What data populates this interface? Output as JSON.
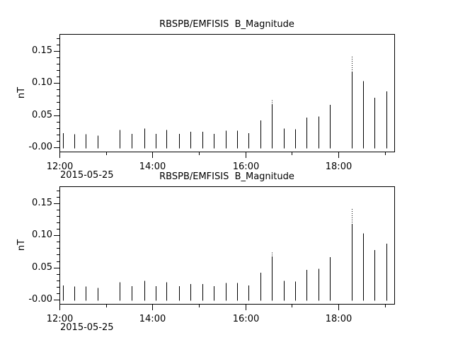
{
  "figure": {
    "background": "#ffffff",
    "foreground": "#000000",
    "date_label": "2015-05-25"
  },
  "chart_data": [
    {
      "type": "bar",
      "mark": "thin vertical min-max range bars",
      "title": "RBSPB/EMFISIS  B_Magnitude",
      "ylabel": "nT",
      "x_axis_date": "2015-05-25",
      "grid": false,
      "legend": "none",
      "xlim_hours": [
        12.0,
        19.2
      ],
      "ylim": [
        -0.0068,
        0.1765
      ],
      "x_major_ticks": [
        {
          "hour": 12,
          "label": "12:00"
        },
        {
          "hour": 14,
          "label": "14:00"
        },
        {
          "hour": 16,
          "label": "16:00"
        },
        {
          "hour": 18,
          "label": "18:00"
        }
      ],
      "x_minor_ticks_hours": [
        13,
        15,
        17,
        19
      ],
      "y_major_ticks": [
        {
          "value": 0.0,
          "label": "-0.00"
        },
        {
          "value": 0.05,
          "label": "0.05"
        },
        {
          "value": 0.1,
          "label": "0.10"
        },
        {
          "value": 0.15,
          "label": "0.15"
        }
      ],
      "y_minor_step": 0.01,
      "points": [
        {
          "time": "12:04",
          "hour": 12.07,
          "min": -0.002,
          "max": 0.022
        },
        {
          "time": "12:19",
          "hour": 12.32,
          "min": -0.002,
          "max": 0.02
        },
        {
          "time": "12:34",
          "hour": 12.57,
          "min": -0.002,
          "max": 0.02
        },
        {
          "time": "12:49",
          "hour": 12.82,
          "min": -0.002,
          "max": 0.018
        },
        {
          "time": "13:18",
          "hour": 13.3,
          "min": -0.002,
          "max": 0.027
        },
        {
          "time": "13:33",
          "hour": 13.55,
          "min": -0.002,
          "max": 0.021
        },
        {
          "time": "13:49",
          "hour": 13.82,
          "min": -0.002,
          "max": 0.029
        },
        {
          "time": "14:04",
          "hour": 14.07,
          "min": -0.002,
          "max": 0.021
        },
        {
          "time": "14:18",
          "hour": 14.3,
          "min": -0.002,
          "max": 0.027
        },
        {
          "time": "14:34",
          "hour": 14.57,
          "min": -0.002,
          "max": 0.021
        },
        {
          "time": "14:49",
          "hour": 14.82,
          "min": -0.002,
          "max": 0.024
        },
        {
          "time": "15:04",
          "hour": 15.07,
          "min": -0.002,
          "max": 0.024
        },
        {
          "time": "15:19",
          "hour": 15.32,
          "min": -0.002,
          "max": 0.021
        },
        {
          "time": "15:34",
          "hour": 15.57,
          "min": -0.002,
          "max": 0.026
        },
        {
          "time": "15:49",
          "hour": 15.82,
          "min": -0.002,
          "max": 0.026
        },
        {
          "time": "16:04",
          "hour": 16.07,
          "min": -0.002,
          "max": 0.022
        },
        {
          "time": "16:19",
          "hour": 16.32,
          "min": -0.002,
          "max": 0.042
        },
        {
          "time": "16:34",
          "hour": 16.57,
          "min": -0.002,
          "max": 0.073,
          "solid_to": 0.067
        },
        {
          "time": "16:49",
          "hour": 16.82,
          "min": -0.002,
          "max": 0.029
        },
        {
          "time": "17:04",
          "hour": 17.07,
          "min": -0.002,
          "max": 0.028
        },
        {
          "time": "17:19",
          "hour": 17.32,
          "min": -0.002,
          "max": 0.046
        },
        {
          "time": "17:34",
          "hour": 17.57,
          "min": -0.002,
          "max": 0.048
        },
        {
          "time": "17:49",
          "hour": 17.82,
          "min": -0.002,
          "max": 0.066
        },
        {
          "time": "18:17",
          "hour": 18.29,
          "min": -0.002,
          "max": 0.141,
          "solid_to": 0.117
        },
        {
          "time": "18:32",
          "hour": 18.53,
          "min": -0.002,
          "max": 0.103
        },
        {
          "time": "18:47",
          "hour": 18.78,
          "min": -0.002,
          "max": 0.077
        },
        {
          "time": "19:02",
          "hour": 19.03,
          "min": -0.002,
          "max": 0.087
        }
      ]
    },
    {
      "type": "bar",
      "mark": "thin vertical min-max range bars",
      "title": "RBSPB/EMFISIS  B_Magnitude",
      "ylabel": "nT",
      "x_axis_date": "2015-05-25",
      "grid": false,
      "legend": "none",
      "xlim_hours": [
        12.0,
        19.2
      ],
      "ylim": [
        -0.0068,
        0.1765
      ],
      "x_major_ticks": [
        {
          "hour": 12,
          "label": "12:00"
        },
        {
          "hour": 14,
          "label": "14:00"
        },
        {
          "hour": 16,
          "label": "16:00"
        },
        {
          "hour": 18,
          "label": "18:00"
        }
      ],
      "x_minor_ticks_hours": [
        13,
        15,
        17,
        19
      ],
      "y_major_ticks": [
        {
          "value": 0.0,
          "label": "-0.00"
        },
        {
          "value": 0.05,
          "label": "0.05"
        },
        {
          "value": 0.1,
          "label": "0.10"
        },
        {
          "value": 0.15,
          "label": "0.15"
        }
      ],
      "y_minor_step": 0.01,
      "points": [
        {
          "time": "12:04",
          "hour": 12.07,
          "min": -0.002,
          "max": 0.022
        },
        {
          "time": "12:19",
          "hour": 12.32,
          "min": -0.002,
          "max": 0.02
        },
        {
          "time": "12:34",
          "hour": 12.57,
          "min": -0.002,
          "max": 0.02
        },
        {
          "time": "12:49",
          "hour": 12.82,
          "min": -0.002,
          "max": 0.018
        },
        {
          "time": "13:18",
          "hour": 13.3,
          "min": -0.002,
          "max": 0.027
        },
        {
          "time": "13:33",
          "hour": 13.55,
          "min": -0.002,
          "max": 0.021
        },
        {
          "time": "13:49",
          "hour": 13.82,
          "min": -0.002,
          "max": 0.029
        },
        {
          "time": "14:04",
          "hour": 14.07,
          "min": -0.002,
          "max": 0.021
        },
        {
          "time": "14:18",
          "hour": 14.3,
          "min": -0.002,
          "max": 0.027
        },
        {
          "time": "14:34",
          "hour": 14.57,
          "min": -0.002,
          "max": 0.021
        },
        {
          "time": "14:49",
          "hour": 14.82,
          "min": -0.002,
          "max": 0.024
        },
        {
          "time": "15:04",
          "hour": 15.07,
          "min": -0.002,
          "max": 0.024
        },
        {
          "time": "15:19",
          "hour": 15.32,
          "min": -0.002,
          "max": 0.021
        },
        {
          "time": "15:34",
          "hour": 15.57,
          "min": -0.002,
          "max": 0.026
        },
        {
          "time": "15:49",
          "hour": 15.82,
          "min": -0.002,
          "max": 0.026
        },
        {
          "time": "16:04",
          "hour": 16.07,
          "min": -0.002,
          "max": 0.022
        },
        {
          "time": "16:19",
          "hour": 16.32,
          "min": -0.002,
          "max": 0.042
        },
        {
          "time": "16:34",
          "hour": 16.57,
          "min": -0.002,
          "max": 0.073,
          "solid_to": 0.067
        },
        {
          "time": "16:49",
          "hour": 16.82,
          "min": -0.002,
          "max": 0.029
        },
        {
          "time": "17:04",
          "hour": 17.07,
          "min": -0.002,
          "max": 0.028
        },
        {
          "time": "17:19",
          "hour": 17.32,
          "min": -0.002,
          "max": 0.046
        },
        {
          "time": "17:34",
          "hour": 17.57,
          "min": -0.002,
          "max": 0.048
        },
        {
          "time": "17:49",
          "hour": 17.82,
          "min": -0.002,
          "max": 0.066
        },
        {
          "time": "18:17",
          "hour": 18.29,
          "min": -0.002,
          "max": 0.141,
          "solid_to": 0.117
        },
        {
          "time": "18:32",
          "hour": 18.53,
          "min": -0.002,
          "max": 0.103
        },
        {
          "time": "18:47",
          "hour": 18.78,
          "min": -0.002,
          "max": 0.077
        },
        {
          "time": "19:02",
          "hour": 19.03,
          "min": -0.002,
          "max": 0.087
        }
      ]
    }
  ]
}
